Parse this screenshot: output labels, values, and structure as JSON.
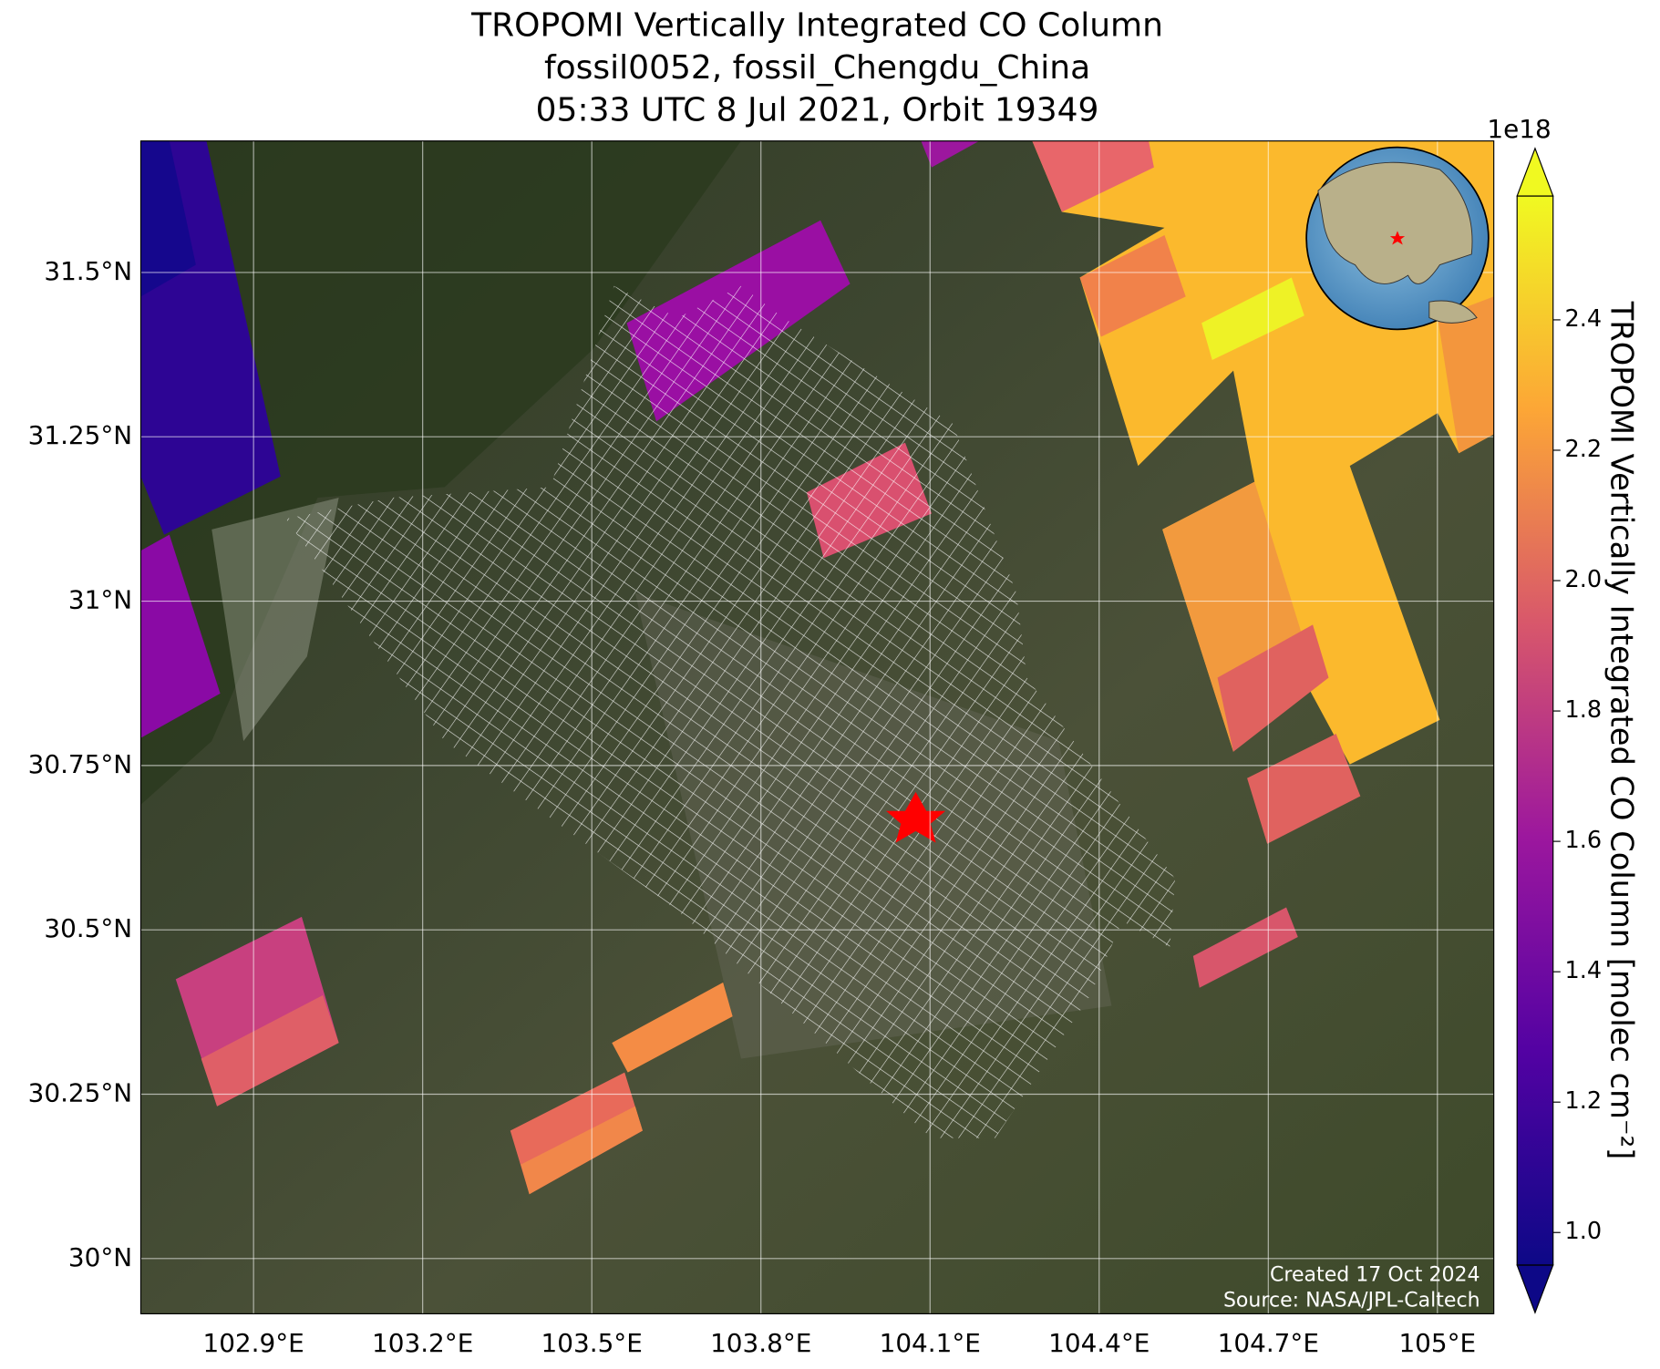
{
  "chart_data": {
    "type": "map",
    "title": [
      "TROPOMI Vertically Integrated CO Column",
      "fossil0052, fossil_Chengdu_China",
      "05:33 UTC 8 Jul 2021, Orbit 19349"
    ],
    "xlim": [
      102.7,
      105.1
    ],
    "ylim": [
      29.916,
      31.7
    ],
    "xticks": [
      {
        "value": 102.9,
        "label": "102.9°E"
      },
      {
        "value": 103.2,
        "label": "103.2°E"
      },
      {
        "value": 103.5,
        "label": "103.5°E"
      },
      {
        "value": 103.8,
        "label": "103.8°E"
      },
      {
        "value": 104.1,
        "label": "104.1°E"
      },
      {
        "value": 104.4,
        "label": "104.4°E"
      },
      {
        "value": 104.7,
        "label": "104.7°E"
      },
      {
        "value": 105.0,
        "label": "105°E"
      }
    ],
    "yticks": [
      {
        "value": 30,
        "label": "30°N"
      },
      {
        "value": 30.25,
        "label": "30.25°N"
      },
      {
        "value": 30.5,
        "label": "30.5°N"
      },
      {
        "value": 30.75,
        "label": "30.75°N"
      },
      {
        "value": 31,
        "label": "31°N"
      },
      {
        "value": 31.25,
        "label": "31.25°N"
      },
      {
        "value": 31.5,
        "label": "31.5°N"
      }
    ],
    "grid": true,
    "colorbar": {
      "label": "TROPOMI Vertically Integrated CO Column [molec cm⁻²]",
      "offset_label": "1e18",
      "clim": [
        0.95,
        2.59
      ],
      "ticks": [
        {
          "value": 1.0,
          "label": "1.0"
        },
        {
          "value": 1.2,
          "label": "1.2"
        },
        {
          "value": 1.4,
          "label": "1.4"
        },
        {
          "value": 1.6,
          "label": "1.6"
        },
        {
          "value": 1.8,
          "label": "1.8"
        },
        {
          "value": 2.0,
          "label": "2.0"
        },
        {
          "value": 2.2,
          "label": "2.2"
        },
        {
          "value": 2.4,
          "label": "2.4"
        }
      ]
    },
    "annotations": [
      "Created 17 Oct 2024",
      "Source: NASA/JPL-Caltech"
    ]
  }
}
